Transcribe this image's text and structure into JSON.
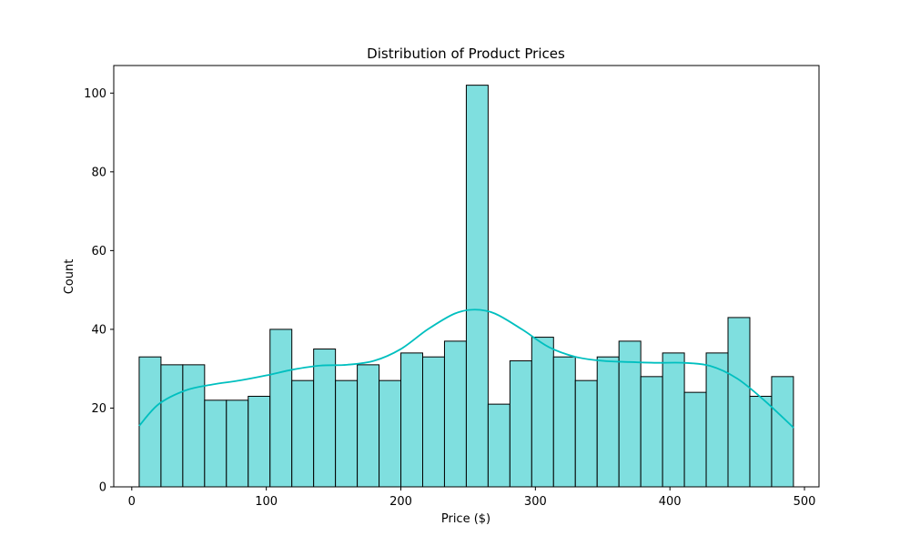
{
  "chart_data": {
    "type": "bar",
    "title": "Distribution of Product Prices",
    "xlabel": "Price ($)",
    "ylabel": "Count",
    "xlim": [
      -13.4,
      510.8
    ],
    "ylim": [
      0,
      107
    ],
    "xticks": [
      0,
      100,
      200,
      300,
      400,
      500
    ],
    "yticks": [
      0,
      20,
      40,
      60,
      80,
      100
    ],
    "bin_start": 5.5,
    "bin_width": 16.21,
    "values": [
      33,
      31,
      31,
      22,
      22,
      23,
      40,
      27,
      35,
      27,
      31,
      27,
      34,
      33,
      37,
      102,
      21,
      32,
      38,
      33,
      27,
      33,
      37,
      28,
      34,
      24,
      34,
      43,
      23,
      28
    ],
    "kde": {
      "x": [
        5.5,
        20,
        40,
        60,
        80,
        100,
        120,
        140,
        160,
        180,
        200,
        220,
        240,
        255,
        270,
        290,
        310,
        330,
        350,
        370,
        390,
        410,
        430,
        450,
        470,
        492
      ],
      "y": [
        15.5,
        21,
        24.5,
        26,
        27,
        28.3,
        29.8,
        30.8,
        31,
        32,
        35,
        40,
        44,
        45,
        44,
        40,
        35.5,
        33,
        32,
        31.7,
        31.5,
        31.5,
        30.7,
        27.5,
        22,
        15
      ]
    },
    "grid": false,
    "colors": {
      "bar_fill": "#7fdfdf",
      "bar_edge": "#000000",
      "kde_line": "#00bfbf"
    }
  }
}
